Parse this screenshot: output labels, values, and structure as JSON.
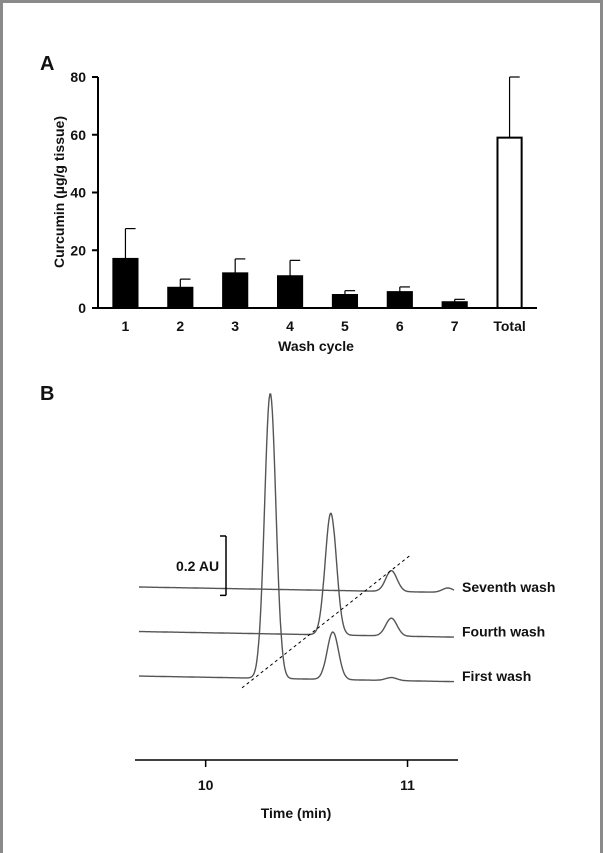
{
  "chart_data": [
    {
      "panel": "A",
      "type": "bar",
      "title": "",
      "xlabel": "Wash cycle",
      "ylabel": "Curcumin (µg/g tissue)",
      "ylim": [
        0,
        80
      ],
      "yticks": [
        "0",
        "20",
        "40",
        "60",
        "80"
      ],
      "categories": [
        "1",
        "2",
        "3",
        "4",
        "5",
        "6",
        "7",
        "Total"
      ],
      "values": [
        17,
        7,
        12,
        11,
        4.5,
        5.5,
        2,
        59
      ],
      "error_upper": [
        10.5,
        3,
        5,
        5.5,
        1.5,
        1.8,
        1,
        21
      ],
      "bar_fill": [
        "#000000",
        "#000000",
        "#000000",
        "#000000",
        "#000000",
        "#000000",
        "#000000",
        "#ffffff"
      ],
      "grid": false,
      "legend": "none"
    },
    {
      "panel": "B",
      "type": "line",
      "title": "",
      "xlabel": "Time (min)",
      "ylabel": "",
      "xlim": [
        9.65,
        11.25
      ],
      "xticks": [
        "10",
        "11"
      ],
      "scale_bar_label": "0.2 AU",
      "scale_bar_value": 0.2,
      "series": [
        {
          "name": "Seventh wash",
          "offset": 0.3,
          "peaks": [
            {
              "time": 10.92,
              "height": 0.07
            },
            {
              "time": 11.2,
              "height": 0.015
            }
          ]
        },
        {
          "name": "Fourth wash",
          "offset": 0.15,
          "peaks": [
            {
              "time": 10.62,
              "height": 0.41
            },
            {
              "time": 10.92,
              "height": 0.06
            }
          ]
        },
        {
          "name": "First wash",
          "offset": 0.0,
          "peaks": [
            {
              "time": 10.32,
              "height": 0.96
            },
            {
              "time": 10.63,
              "height": 0.16
            },
            {
              "time": 10.92,
              "height": 0.01
            }
          ]
        }
      ],
      "dashed_line": {
        "from": [
          10.18,
          -0.04
        ],
        "to": [
          11.02,
          0.41
        ]
      }
    }
  ]
}
